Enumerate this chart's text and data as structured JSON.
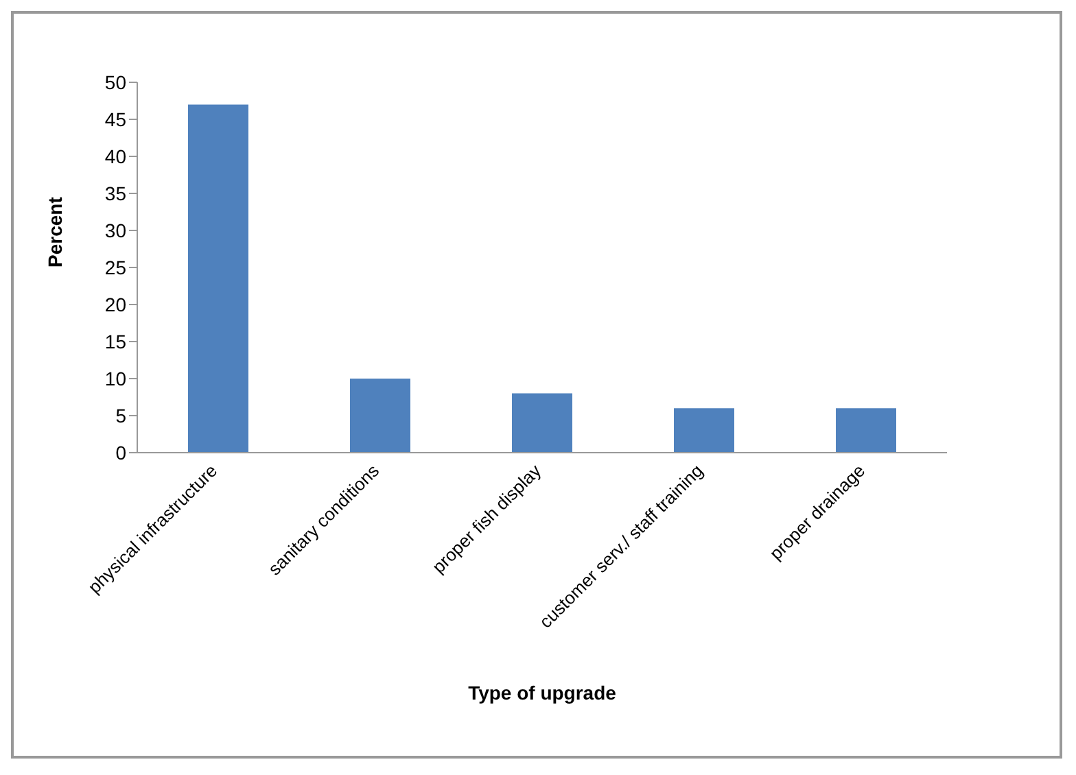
{
  "chart_data": {
    "type": "bar",
    "xlabel": "Type of upgrade",
    "ylabel": "Percent",
    "categories": [
      "physical infrastructure",
      "sanitary conditions",
      "proper fish display",
      "customer serv./ staff training",
      "proper drainage"
    ],
    "values": [
      47,
      10,
      8,
      6,
      6
    ],
    "color": "#4f81bd",
    "ylim": [
      0,
      50
    ],
    "yticks": [
      0,
      5,
      10,
      15,
      20,
      25,
      30,
      35,
      40,
      45,
      50
    ],
    "grid": false
  }
}
